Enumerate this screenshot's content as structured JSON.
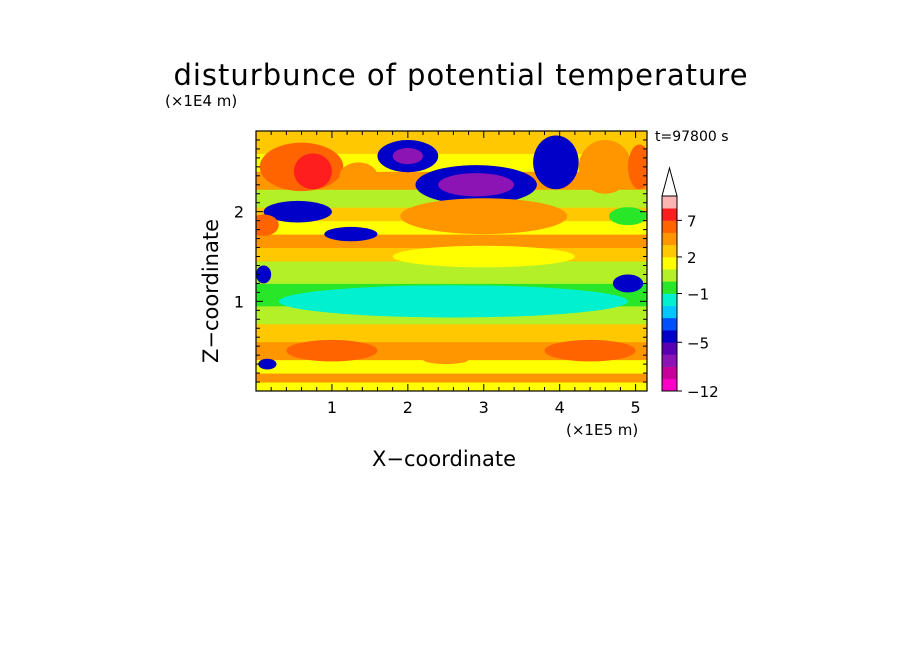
{
  "chart_data": {
    "type": "heatmap",
    "title": "disturbunce of potential temperature",
    "xlabel": "X−coordinate",
    "ylabel": "Z−coordinate",
    "x_unit": "(×1E5 m)",
    "y_unit": "(×1E4 m)",
    "annotation": "t=97800 s",
    "xlim": [
      0,
      5.15
    ],
    "ylim": [
      0,
      2.9
    ],
    "x_ticks": [
      "1",
      "2",
      "3",
      "4",
      "5"
    ],
    "y_ticks": [
      "1",
      "2"
    ],
    "colorbar": {
      "levels": [
        -12,
        -10,
        -8,
        -6,
        -5,
        -4,
        -3,
        -2,
        -1,
        0,
        1,
        2,
        3,
        5,
        7,
        9,
        11
      ],
      "tick_labels": [
        "−12",
        "−5",
        "−1",
        "2",
        "7"
      ],
      "colors": [
        "#ff00c8",
        "#c8009b",
        "#8c14b4",
        "#5a00b4",
        "#0000c8",
        "#0050ff",
        "#00c8ff",
        "#00f0d0",
        "#28e628",
        "#b4f028",
        "#ffff00",
        "#ffc800",
        "#ff9600",
        "#ff6400",
        "#ff1e1e",
        "#ffb4b4"
      ],
      "extend": "max"
    },
    "bands": [
      {
        "z": [
          0.0,
          0.1
        ],
        "value": 1.5
      },
      {
        "z": [
          0.1,
          0.2
        ],
        "value": 3.5
      },
      {
        "z": [
          0.2,
          0.35
        ],
        "value": 1.5
      },
      {
        "z": [
          0.35,
          0.55
        ],
        "value": 3.5
      },
      {
        "z": [
          0.55,
          0.75
        ],
        "value": 2.5
      },
      {
        "z": [
          0.75,
          0.95
        ],
        "value": 0.5
      },
      {
        "z": [
          0.95,
          1.2
        ],
        "value": -0.5
      },
      {
        "z": [
          1.2,
          1.45
        ],
        "value": 0.5
      },
      {
        "z": [
          1.45,
          1.6
        ],
        "value": 2.5
      },
      {
        "z": [
          1.6,
          1.75
        ],
        "value": 3.5
      },
      {
        "z": [
          1.75,
          1.9
        ],
        "value": 1.5
      },
      {
        "z": [
          1.9,
          2.05
        ],
        "value": 2.5
      },
      {
        "z": [
          2.05,
          2.25
        ],
        "value": 0.5
      },
      {
        "z": [
          2.25,
          2.45
        ],
        "value": 3.5
      },
      {
        "z": [
          2.45,
          2.65
        ],
        "value": 1.5
      },
      {
        "z": [
          2.65,
          2.9
        ],
        "value": 2.5
      }
    ],
    "features": [
      {
        "x": 2.9,
        "z": 2.3,
        "rx": 0.8,
        "rz": 0.22,
        "value": -4.5
      },
      {
        "x": 2.9,
        "z": 2.3,
        "rx": 0.5,
        "rz": 0.13,
        "value": -6.5
      },
      {
        "x": 0.6,
        "z": 2.5,
        "rx": 0.55,
        "rz": 0.27,
        "value": 6
      },
      {
        "x": 0.75,
        "z": 2.45,
        "rx": 0.25,
        "rz": 0.2,
        "value": 8
      },
      {
        "x": 1.35,
        "z": 2.4,
        "rx": 0.25,
        "rz": 0.15,
        "value": 4
      },
      {
        "x": 2.0,
        "z": 2.62,
        "rx": 0.4,
        "rz": 0.18,
        "value": -4.5
      },
      {
        "x": 2.0,
        "z": 2.62,
        "rx": 0.2,
        "rz": 0.09,
        "value": -6.5
      },
      {
        "x": 3.95,
        "z": 2.55,
        "rx": 0.3,
        "rz": 0.3,
        "value": -4.5
      },
      {
        "x": 4.6,
        "z": 2.5,
        "rx": 0.35,
        "rz": 0.3,
        "value": 4
      },
      {
        "x": 5.05,
        "z": 2.5,
        "rx": 0.15,
        "rz": 0.25,
        "value": 6
      },
      {
        "x": 0.55,
        "z": 2.0,
        "rx": 0.45,
        "rz": 0.12,
        "value": -4.5
      },
      {
        "x": 0.1,
        "z": 1.85,
        "rx": 0.2,
        "rz": 0.12,
        "value": 6
      },
      {
        "x": 1.25,
        "z": 1.75,
        "rx": 0.35,
        "rz": 0.08,
        "value": -4.5
      },
      {
        "x": 3.0,
        "z": 1.95,
        "rx": 1.1,
        "rz": 0.2,
        "value": 4
      },
      {
        "x": 3.0,
        "z": 1.5,
        "rx": 1.2,
        "rz": 0.12,
        "value": 1.5
      },
      {
        "x": 4.9,
        "z": 1.95,
        "rx": 0.25,
        "rz": 0.1,
        "value": -0.5
      },
      {
        "x": 2.6,
        "z": 1.0,
        "rx": 2.3,
        "rz": 0.18,
        "value": -1.5
      },
      {
        "x": 4.9,
        "z": 1.2,
        "rx": 0.2,
        "rz": 0.1,
        "value": -4.5
      },
      {
        "x": 0.1,
        "z": 1.3,
        "rx": 0.1,
        "rz": 0.1,
        "value": -4.5
      },
      {
        "x": 1.0,
        "z": 0.45,
        "rx": 0.6,
        "rz": 0.12,
        "value": 5
      },
      {
        "x": 4.4,
        "z": 0.45,
        "rx": 0.6,
        "rz": 0.12,
        "value": 5
      },
      {
        "x": 0.15,
        "z": 0.3,
        "rx": 0.12,
        "rz": 0.06,
        "value": -4.5
      },
      {
        "x": 2.5,
        "z": 0.35,
        "rx": 0.3,
        "rz": 0.05,
        "value": 3.5
      }
    ]
  }
}
